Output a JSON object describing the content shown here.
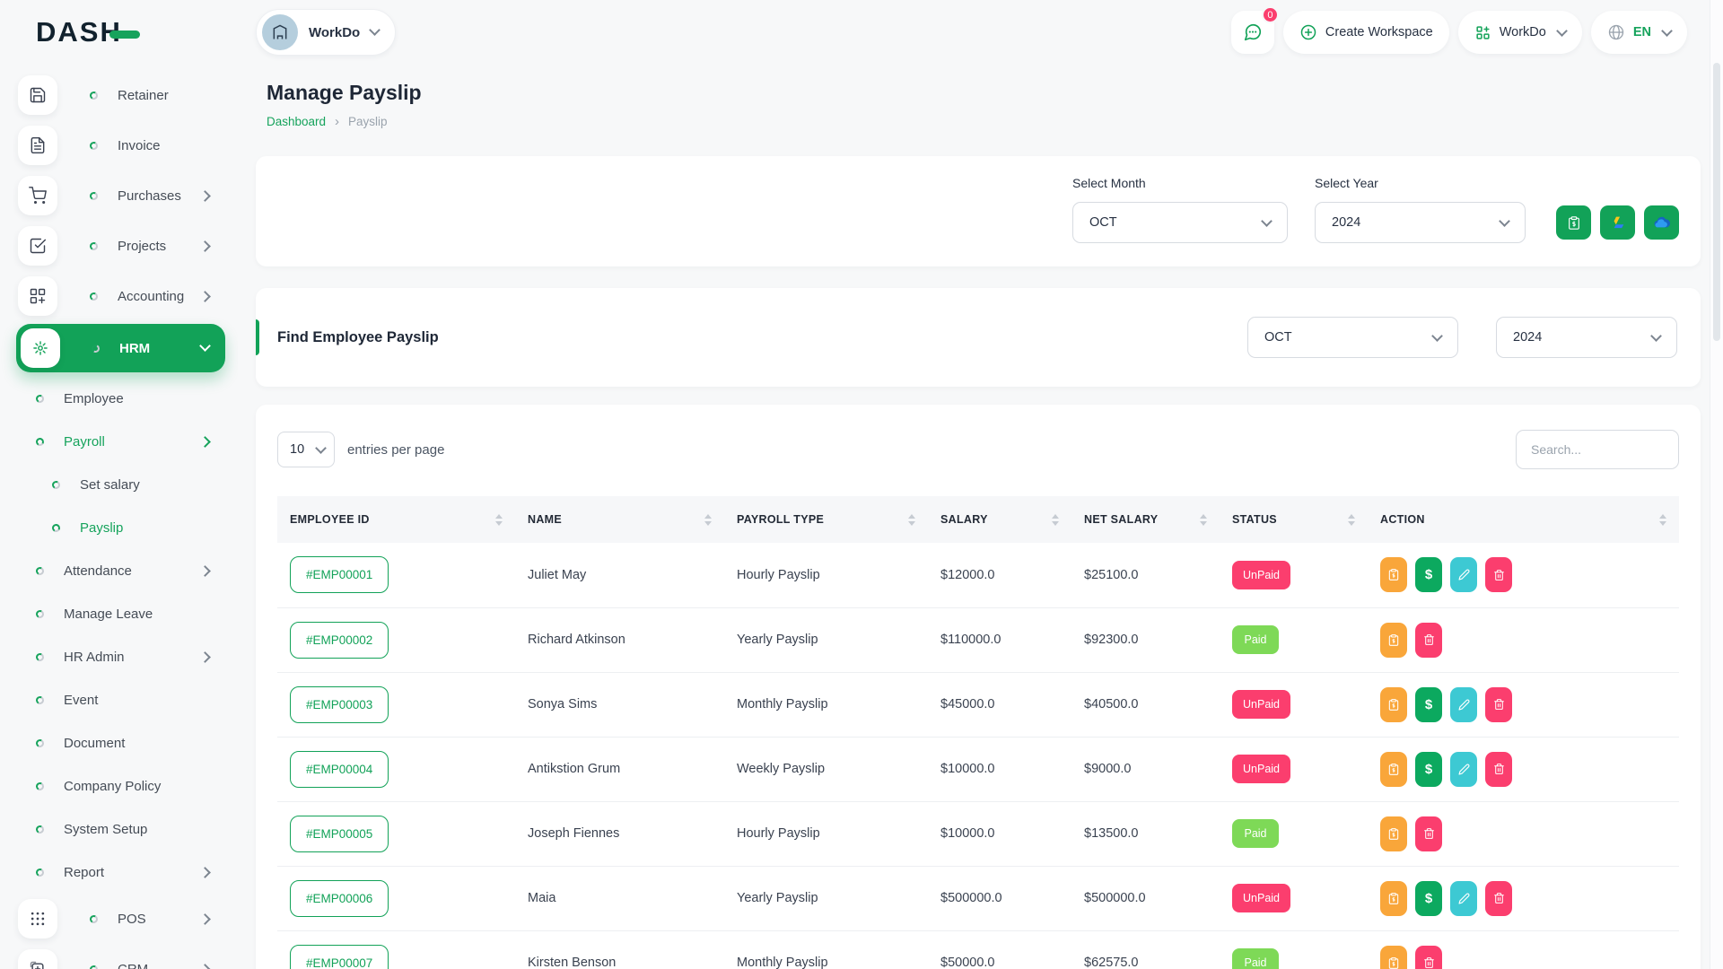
{
  "colors": {
    "primary_green": "#12a258",
    "paid_green": "#7ed957",
    "unpaid_pink": "#fb3e6e",
    "action_orange": "#f9a63a",
    "action_cyan": "#3dc9d3"
  },
  "brand": {
    "logo_text": "DASH"
  },
  "topbar": {
    "workspace_selector": {
      "label": "WorkDo"
    },
    "messages": {
      "badge_count": "0"
    },
    "create_workspace": {
      "label": "Create Workspace"
    },
    "app_switcher": {
      "label": "WorkDo"
    },
    "language": {
      "code": "EN"
    }
  },
  "sidebar": {
    "items": [
      {
        "label": "Retainer",
        "kind": "kind-chip",
        "icon": "retainer-icon",
        "chevron": ""
      },
      {
        "label": "Invoice",
        "kind": "kind-chip",
        "icon": "invoice-icon",
        "chevron": ""
      },
      {
        "label": "Purchases",
        "kind": "kind-chip",
        "icon": "purchases-icon",
        "chevron": "right"
      },
      {
        "label": "Projects",
        "kind": "kind-chip",
        "icon": "projects-icon",
        "chevron": "right"
      },
      {
        "label": "Accounting",
        "kind": "kind-chip",
        "icon": "accounting-icon",
        "chevron": "right"
      },
      {
        "label": "HRM",
        "kind": "kind-chip main-active",
        "icon": "hrm-icon",
        "chevron": "down"
      },
      {
        "label": "Employee",
        "kind": "kind-bullet",
        "chevron": ""
      },
      {
        "label": "Payroll",
        "kind": "kind-bullet active-green",
        "chevron": "right"
      },
      {
        "label": "Set salary",
        "kind": "kind-sub",
        "chevron": ""
      },
      {
        "label": "Payslip",
        "kind": "kind-sub active-green",
        "chevron": ""
      },
      {
        "label": "Attendance",
        "kind": "kind-bullet",
        "chevron": "right"
      },
      {
        "label": "Manage Leave",
        "kind": "kind-bullet",
        "chevron": ""
      },
      {
        "label": "HR Admin",
        "kind": "kind-bullet",
        "chevron": "right"
      },
      {
        "label": "Event",
        "kind": "kind-bullet",
        "chevron": ""
      },
      {
        "label": "Document",
        "kind": "kind-bullet",
        "chevron": ""
      },
      {
        "label": "Company Policy",
        "kind": "kind-bullet",
        "chevron": ""
      },
      {
        "label": "System Setup",
        "kind": "kind-bullet",
        "chevron": ""
      },
      {
        "label": "Report",
        "kind": "kind-bullet",
        "chevron": "right"
      },
      {
        "label": "POS",
        "kind": "kind-chip",
        "icon": "pos-icon",
        "chevron": "right"
      },
      {
        "label": "CRM",
        "kind": "kind-chip",
        "icon": "crm-icon",
        "chevron": "right"
      }
    ]
  },
  "page": {
    "title": "Manage Payslip",
    "breadcrumb": {
      "home": "Dashboard",
      "separator": "›",
      "current": "Payslip"
    }
  },
  "filter_card": {
    "month_label": "Select Month",
    "month_value": "OCT",
    "year_label": "Select Year",
    "year_value": "2024"
  },
  "find_card": {
    "title": "Find Employee Payslip",
    "month_value": "OCT",
    "year_value": "2024"
  },
  "table": {
    "page_size": "10",
    "page_size_label": "entries per page",
    "search_placeholder": "Search...",
    "columns": [
      {
        "label": "EMPLOYEE ID",
        "class": "col-id"
      },
      {
        "label": "NAME",
        "class": "col-name"
      },
      {
        "label": "PAYROLL TYPE",
        "class": "col-type"
      },
      {
        "label": "SALARY",
        "class": "col-salary"
      },
      {
        "label": "NET SALARY",
        "class": "col-net"
      },
      {
        "label": "STATUS",
        "class": "col-status"
      },
      {
        "label": "ACTION",
        "class": "col-action"
      }
    ],
    "rows": [
      {
        "employee_id": "#EMP00001",
        "name": "Juliet May",
        "payroll_type": "Hourly Payslip",
        "salary": "$12000.0",
        "net_salary": "$25100.0",
        "status": "UnPaid",
        "status_class": "unpaid",
        "actions": [
          "receipt",
          "pay",
          "edit",
          "delete"
        ]
      },
      {
        "employee_id": "#EMP00002",
        "name": "Richard Atkinson",
        "payroll_type": "Yearly Payslip",
        "salary": "$110000.0",
        "net_salary": "$92300.0",
        "status": "Paid",
        "status_class": "paid",
        "actions": [
          "receipt",
          "delete"
        ]
      },
      {
        "employee_id": "#EMP00003",
        "name": "Sonya Sims",
        "payroll_type": "Monthly Payslip",
        "salary": "$45000.0",
        "net_salary": "$40500.0",
        "status": "UnPaid",
        "status_class": "unpaid",
        "actions": [
          "receipt",
          "pay",
          "edit",
          "delete"
        ]
      },
      {
        "employee_id": "#EMP00004",
        "name": "Antikstion Grum",
        "payroll_type": "Weekly Payslip",
        "salary": "$10000.0",
        "net_salary": "$9000.0",
        "status": "UnPaid",
        "status_class": "unpaid",
        "actions": [
          "receipt",
          "pay",
          "edit",
          "delete"
        ]
      },
      {
        "employee_id": "#EMP00005",
        "name": "Joseph Fiennes",
        "payroll_type": "Hourly Payslip",
        "salary": "$10000.0",
        "net_salary": "$13500.0",
        "status": "Paid",
        "status_class": "paid",
        "actions": [
          "receipt",
          "delete"
        ]
      },
      {
        "employee_id": "#EMP00006",
        "name": "Maia",
        "payroll_type": "Yearly Payslip",
        "salary": "$500000.0",
        "net_salary": "$500000.0",
        "status": "UnPaid",
        "status_class": "unpaid",
        "actions": [
          "receipt",
          "pay",
          "edit",
          "delete"
        ]
      },
      {
        "employee_id": "#EMP00007",
        "name": "Kirsten Benson",
        "payroll_type": "Monthly Payslip",
        "salary": "$50000.0",
        "net_salary": "$62575.0",
        "status": "Paid",
        "status_class": "paid",
        "actions": [
          "receipt",
          "delete"
        ]
      }
    ]
  }
}
